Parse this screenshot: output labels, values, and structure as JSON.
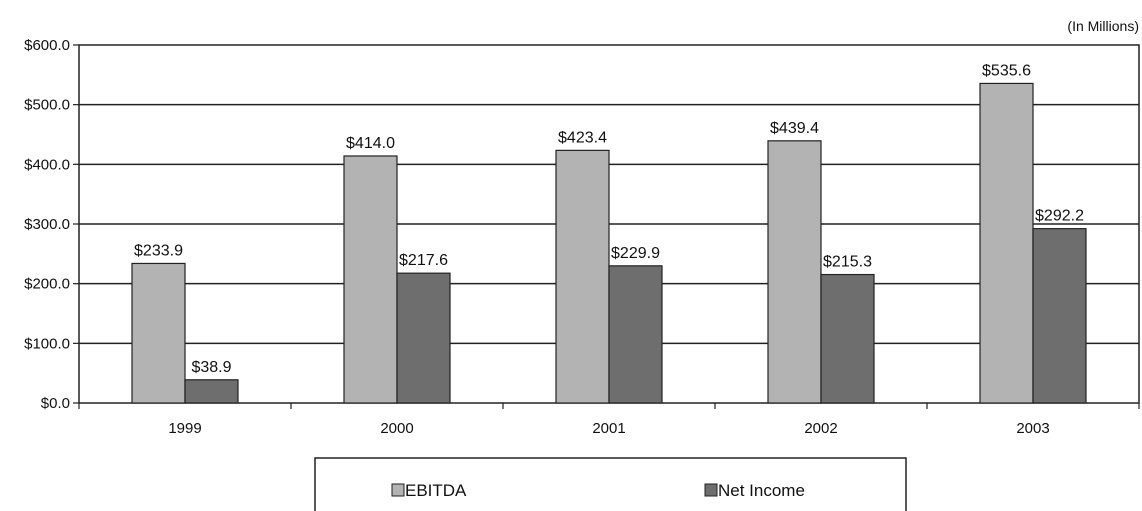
{
  "chart_data": {
    "type": "bar",
    "unit_note": "(In Millions)",
    "categories": [
      "1999",
      "2000",
      "2001",
      "2002",
      "2003"
    ],
    "series": [
      {
        "name": "EBITDA",
        "values": [
          233.9,
          414.0,
          423.4,
          439.4,
          535.6
        ],
        "labels": [
          "$233.9",
          "$414.0",
          "$423.4",
          "$439.4",
          "$535.6"
        ],
        "color": "#b3b3b3"
      },
      {
        "name": "Net Income",
        "values": [
          38.9,
          217.6,
          229.9,
          215.3,
          292.2
        ],
        "labels": [
          "$38.9",
          "$217.6",
          "$229.9",
          "$215.3",
          "$292.2"
        ],
        "color": "#6e6e6e"
      }
    ],
    "ylim": [
      0,
      600
    ],
    "yticks": [
      0,
      100,
      200,
      300,
      400,
      500,
      600
    ],
    "ytick_labels": [
      "$0.0",
      "$100.0",
      "$200.0",
      "$300.0",
      "$400.0",
      "$500.0",
      "$600.0"
    ],
    "grid": true,
    "legend_position": "bottom-center"
  }
}
